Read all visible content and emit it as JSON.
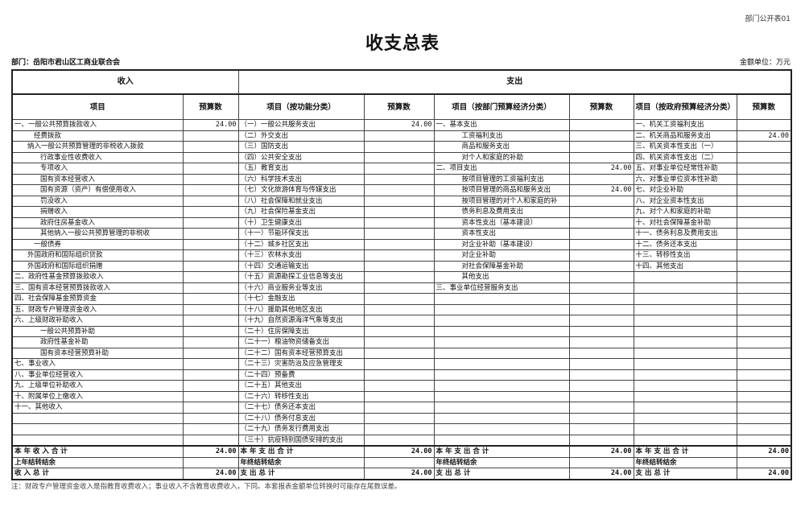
{
  "form_code": "部门公开表01",
  "title": "收支总表",
  "department": "部门：岳阳市君山区工商业联合会",
  "unit": "金额单位：万元",
  "headers": {
    "income": "收入",
    "expense": "支出",
    "cols": [
      "项目",
      "预算数",
      "项目（按功能分类）",
      "预算数",
      "项目（按部门预算经济分类）",
      "预算数",
      "项目（按政府预算经济分类）",
      "预算数"
    ]
  },
  "income": [
    {
      "label": "一、一般公共预算拨款收入",
      "level": 0,
      "value": "24.00"
    },
    {
      "label": "经费拨款",
      "level": 3,
      "value": ""
    },
    {
      "label": "纳入一般公共预算管理的非税收入拨款",
      "level": 2,
      "value": ""
    },
    {
      "label": "行政事业性收费收入",
      "level": 4,
      "value": ""
    },
    {
      "label": "专项收入",
      "level": 4,
      "value": ""
    },
    {
      "label": "国有资本经营收入",
      "level": 4,
      "value": ""
    },
    {
      "label": "国有资源（资产）有偿使用收入",
      "level": 4,
      "value": ""
    },
    {
      "label": "罚没收入",
      "level": 4,
      "value": ""
    },
    {
      "label": "捐赠收入",
      "level": 4,
      "value": ""
    },
    {
      "label": "政府住房基金收入",
      "level": 4,
      "value": ""
    },
    {
      "label": "其他纳入一般公共预算管理的非税收",
      "level": 4,
      "value": ""
    },
    {
      "label": "一般债券",
      "level": 3,
      "value": ""
    },
    {
      "label": "外国政府和国际组织贷款",
      "level": 2,
      "value": ""
    },
    {
      "label": "外国政府和国际组织捐赠",
      "level": 2,
      "value": ""
    },
    {
      "label": "二、政府性基金预算拨款收入",
      "level": 0,
      "value": ""
    },
    {
      "label": "三、国有资本经营预算拨款收入",
      "level": 0,
      "value": ""
    },
    {
      "label": "四、社会保障基金预算资金",
      "level": 0,
      "value": ""
    },
    {
      "label": "五、财政专户管理资金收入",
      "level": 0,
      "value": ""
    },
    {
      "label": "六、上级财政补助收入",
      "level": 0,
      "value": ""
    },
    {
      "label": "一般公共预算补助",
      "level": 4,
      "value": ""
    },
    {
      "label": "政府性基金补助",
      "level": 4,
      "value": ""
    },
    {
      "label": "国有资本经营预算补助",
      "level": 4,
      "value": ""
    },
    {
      "label": "七、事业收入",
      "level": 0,
      "value": ""
    },
    {
      "label": "八、事业单位经营收入",
      "level": 0,
      "value": ""
    },
    {
      "label": "九、上级单位补助收入",
      "level": 0,
      "value": ""
    },
    {
      "label": "十、附属单位上缴收入",
      "level": 0,
      "value": ""
    },
    {
      "label": "十一、其他收入",
      "level": 0,
      "value": ""
    }
  ],
  "functional": [
    {
      "label": "（一）一般公共服务支出",
      "value": "24.00"
    },
    {
      "label": "（二）外交支出"
    },
    {
      "label": "（三）国防支出"
    },
    {
      "label": "（四）公共安全支出"
    },
    {
      "label": "（五）教育支出"
    },
    {
      "label": "（六）科学技术支出"
    },
    {
      "label": "（七）文化旅游体育与传媒支出"
    },
    {
      "label": "（八）社会保障和就业支出"
    },
    {
      "label": "（九）社会保险基金支出"
    },
    {
      "label": "（十）卫生健康支出"
    },
    {
      "label": "（十一）节能环保支出"
    },
    {
      "label": "（十二）城乡社区支出"
    },
    {
      "label": "（十三）农林水支出"
    },
    {
      "label": "（十四）交通运输支出"
    },
    {
      "label": "（十五）资源勘探工业信息等支出"
    },
    {
      "label": "（十六）商业服务业等支出"
    },
    {
      "label": "（十七）金融支出"
    },
    {
      "label": "（十八）援助其他地区支出"
    },
    {
      "label": "（十九）自然资源海洋气象等支出"
    },
    {
      "label": "（二十）住房保障支出"
    },
    {
      "label": "（二十一）粮油物资储备支出"
    },
    {
      "label": "（二十二）国有资本经营预算支出"
    },
    {
      "label": "（二十三）灾害防治及应急管理支"
    },
    {
      "label": "（二十四）预备费"
    },
    {
      "label": "（二十五）其他支出"
    },
    {
      "label": "（二十六）转移性支出"
    },
    {
      "label": "（二十七）债务还本支出"
    },
    {
      "label": "（二十八）债务付息支出"
    },
    {
      "label": "（二十九）债务发行费用支出"
    },
    {
      "label": "（三十）抗疫特别国债安排的支出"
    }
  ],
  "dept_economic": [
    {
      "label": "一、基本支出",
      "level": 0
    },
    {
      "label": "工资福利支出",
      "level": 4
    },
    {
      "label": "商品和服务支出",
      "level": 4
    },
    {
      "label": "对个人和家庭的补助",
      "level": 4
    },
    {
      "label": "二、项目支出",
      "level": 0,
      "value": "24.00"
    },
    {
      "label": "按项目管理的工资福利支出",
      "level": 4
    },
    {
      "label": "按项目管理的商品和服务支出",
      "level": 4,
      "value": "24.00"
    },
    {
      "label": "按项目管理的对个人和家庭的补",
      "level": 4
    },
    {
      "label": "债务利息及费用支出",
      "level": 4
    },
    {
      "label": "资本性支出（基本建设）",
      "level": 4
    },
    {
      "label": "资本性支出",
      "level": 4
    },
    {
      "label": "对企业补助（基本建设）",
      "level": 4
    },
    {
      "label": "对企业补助",
      "level": 4
    },
    {
      "label": "对社会保障基金补助",
      "level": 4
    },
    {
      "label": "其他支出",
      "level": 4
    },
    {
      "label": "三、事业单位经营服务支出",
      "level": 0
    }
  ],
  "gov_economic": [
    {
      "label": "一、机关工资福利支出"
    },
    {
      "label": "二、机关商品和服务支出",
      "value": "24.00"
    },
    {
      "label": "三、机关资本性支出（一）"
    },
    {
      "label": "四、机关资本性支出（二）"
    },
    {
      "label": "五、对事业单位经常性补助"
    },
    {
      "label": "六、对事业单位资本性补助"
    },
    {
      "label": "七、对企业补助"
    },
    {
      "label": "八、对企业资本性支出"
    },
    {
      "label": "九、对个人和家庭的补助"
    },
    {
      "label": "十、对社会保障基金补助"
    },
    {
      "label": "十一、债务利息及费用支出"
    },
    {
      "label": "十二、债务还本支出"
    },
    {
      "label": "十三、转移性支出"
    },
    {
      "label": "十四、其他支出"
    }
  ],
  "totals": [
    [
      "本 年 收 入 合 计",
      "24.00",
      "本 年 支 出 合 计",
      "24.00",
      "本 年 支 出 合 计",
      "24.00",
      "本 年 支 出 合 计",
      "24.00"
    ],
    [
      "上年结转结余",
      "",
      "年终结转结余",
      "",
      "年终结转结余",
      "",
      "年终结转结余",
      ""
    ],
    [
      "收 入 总 计",
      "24.00",
      "支 出 总 计",
      "24.00",
      "支 出 总 计",
      "24.00",
      "支 出 总 计",
      "24.00"
    ]
  ],
  "note": "注：财政专户管理资金收入是指教育收费收入；事业收入不含教育收费收入，下同。本套报表金额单位转换时可能存在尾数误差。"
}
